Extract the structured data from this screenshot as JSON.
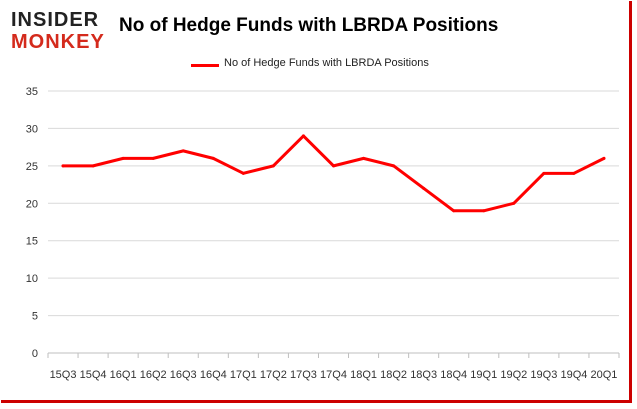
{
  "logo": {
    "line1": "INSIDER",
    "line2": "MONKEY"
  },
  "chart_data": {
    "type": "line",
    "title": "No of Hedge Funds with LBRDA Positions",
    "xlabel": "",
    "ylabel": "",
    "categories": [
      "15Q3",
      "15Q4",
      "16Q1",
      "16Q2",
      "16Q3",
      "16Q4",
      "17Q1",
      "17Q2",
      "17Q3",
      "17Q4",
      "18Q1",
      "18Q2",
      "18Q3",
      "18Q4",
      "19Q1",
      "19Q2",
      "19Q3",
      "19Q4",
      "20Q1"
    ],
    "series": [
      {
        "name": "No of Hedge Funds with LBRDA Positions",
        "values": [
          25,
          25,
          26,
          26,
          27,
          26,
          24,
          25,
          29,
          25,
          26,
          25,
          22,
          19,
          19,
          20,
          24,
          24,
          26
        ],
        "color": "#ff0000"
      }
    ],
    "ylim": [
      0,
      35
    ],
    "yticks": [
      0,
      5,
      10,
      15,
      20,
      25,
      30,
      35
    ],
    "grid": true,
    "legend": "top-center"
  }
}
